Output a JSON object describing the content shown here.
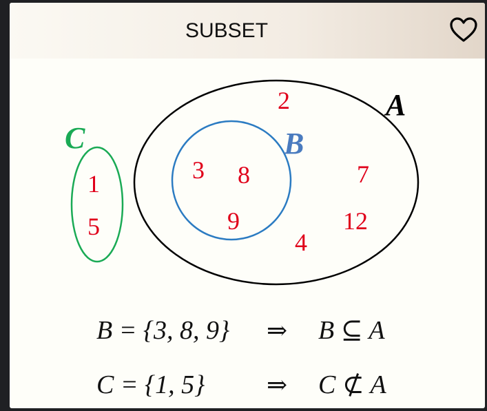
{
  "header": {
    "title": "SUBSET",
    "favorite_icon": "heart-outline-icon"
  },
  "diagram": {
    "sets": [
      {
        "id": "A",
        "label": "A",
        "color": "#000000",
        "elements": [
          "2",
          "7",
          "12",
          "4"
        ]
      },
      {
        "id": "B",
        "label": "B",
        "color": "#4a7bbf",
        "elements": [
          "3",
          "8",
          "9"
        ]
      },
      {
        "id": "C",
        "label": "C",
        "color": "#1aaa55",
        "elements": [
          "1",
          "5"
        ]
      }
    ],
    "element_color": "#e0001a",
    "equations": [
      {
        "lhs": "B = {3, 8, 9}",
        "arrow": "⇒",
        "rhs": "B ⊆ A"
      },
      {
        "lhs": "C = {1, 5}",
        "arrow": "⇒",
        "rhs": "C ⊄ A"
      }
    ]
  }
}
